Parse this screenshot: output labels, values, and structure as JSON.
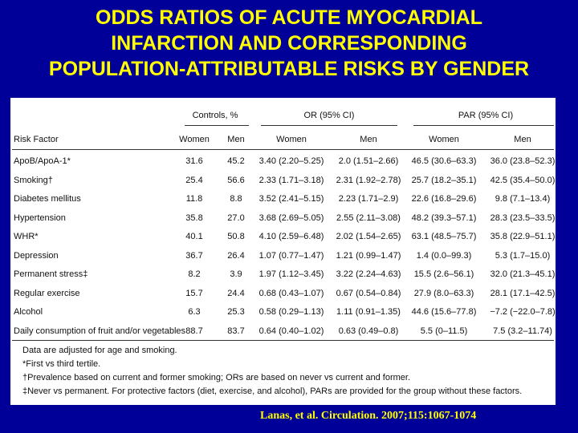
{
  "title": [
    "ODDS RATIOS OF ACUTE MYOCARDIAL",
    "INFARCTION AND CORRESPONDING",
    "POPULATION-ATTRIBUTABLE RISKS BY GENDER"
  ],
  "table": {
    "groups": [
      "Controls, %",
      "OR (95% CI)",
      "PAR (95% CI)"
    ],
    "columns": [
      "Risk Factor",
      "Women",
      "Men",
      "Women",
      "Men",
      "Women",
      "Men"
    ],
    "rows": [
      [
        "ApoB/ApoA-1*",
        "31.6",
        "45.2",
        "3.40 (2.20–5.25)",
        "2.0 (1.51–2.66)",
        "46.5 (30.6–63.3)",
        "36.0 (23.8–52.3)"
      ],
      [
        "Smoking†",
        "25.4",
        "56.6",
        "2.33 (1.71–3.18)",
        "2.31 (1.92–2.78)",
        "25.7 (18.2–35.1)",
        "42.5 (35.4–50.0)"
      ],
      [
        "Diabetes mellitus",
        "11.8",
        "8.8",
        "3.52 (2.41–5.15)",
        "2.23 (1.71–2.9)",
        "22.6 (16.8–29.6)",
        "9.8 (7.1–13.4)"
      ],
      [
        "Hypertension",
        "35.8",
        "27.0",
        "3.68 (2.69–5.05)",
        "2.55 (2.11–3.08)",
        "48.2 (39.3–57.1)",
        "28.3 (23.5–33.5)"
      ],
      [
        "WHR*",
        "40.1",
        "50.8",
        "4.10 (2.59–6.48)",
        "2.02 (1.54–2.65)",
        "63.1 (48.5–75.7)",
        "35.8 (22.9–51.1)"
      ],
      [
        "Depression",
        "36.7",
        "26.4",
        "1.07 (0.77–1.47)",
        "1.21 (0.99–1.47)",
        "1.4 (0.0–99.3)",
        "5.3 (1.7–15.0)"
      ],
      [
        "Permanent stress‡",
        "8.2",
        "3.9",
        "1.97 (1.12–3.45)",
        "3.22 (2.24–4.63)",
        "15.5 (2.6–56.1)",
        "32.0 (21.3–45.1)"
      ],
      [
        "Regular exercise",
        "15.7",
        "24.4",
        "0.68 (0.43–1.07)",
        "0.67 (0.54–0.84)",
        "27.9 (8.0–63.3)",
        "28.1 (17.1–42.5)"
      ],
      [
        "Alcohol",
        "6.3",
        "25.3",
        "0.58 (0.29–1.13)",
        "1.11 (0.91–1.35)",
        "44.6 (15.6–77.8)",
        "−7.2 (−22.0–7.8)"
      ],
      [
        "Daily consumption of fruit and/or vegetables",
        "88.7",
        "83.7",
        "0.64 (0.40–1.02)",
        "0.63 (0.49–0.8)",
        "5.5 (0–11.5)",
        "7.5 (3.2–11.74)"
      ]
    ]
  },
  "notes": [
    "Data are adjusted for age and smoking.",
    "*First vs third tertile.",
    "†Prevalence based on current and former smoking; ORs are based on never vs current and former.",
    "‡Never vs permanent. For protective factors (diet, exercise, and alcohol), PARs are provided for the group without these factors."
  ],
  "citation": "Lanas, et al. Circulation. 2007;115:1067-1074"
}
